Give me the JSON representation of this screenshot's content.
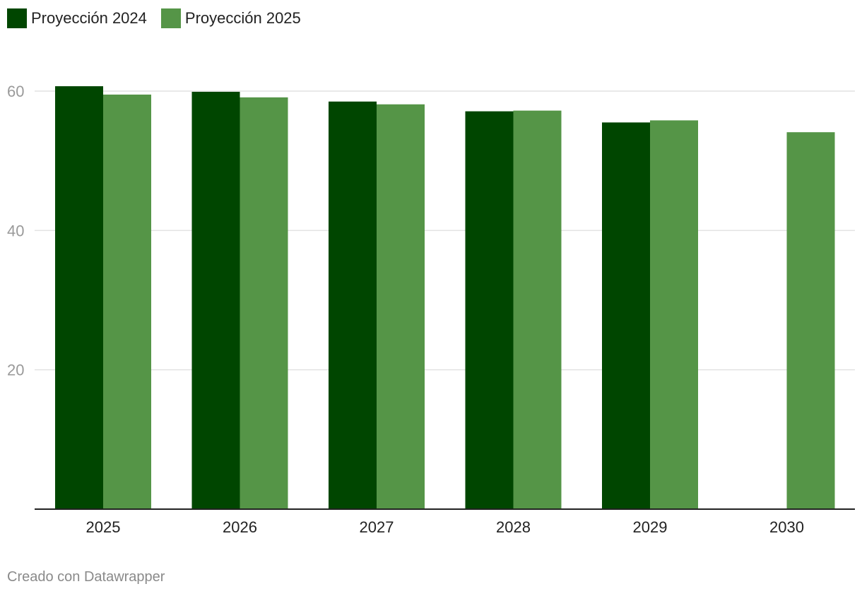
{
  "chart_data": {
    "type": "bar",
    "title": "",
    "xlabel": "",
    "ylabel": "",
    "categories": [
      "2025",
      "2026",
      "2027",
      "2028",
      "2029",
      "2030"
    ],
    "series": [
      {
        "name": "Proyección 2024",
        "color": "#004600",
        "values": [
          60.7,
          59.9,
          58.5,
          57.1,
          55.5,
          null
        ]
      },
      {
        "name": "Proyección 2025",
        "color": "#559547",
        "values": [
          59.5,
          59.1,
          58.1,
          57.2,
          55.8,
          54.1
        ]
      }
    ],
    "ylim": [
      0,
      63
    ],
    "yticks": [
      20,
      40,
      60
    ],
    "grid": true,
    "legend_position": "top-left"
  },
  "footer": {
    "credit": "Creado con Datawrapper"
  }
}
